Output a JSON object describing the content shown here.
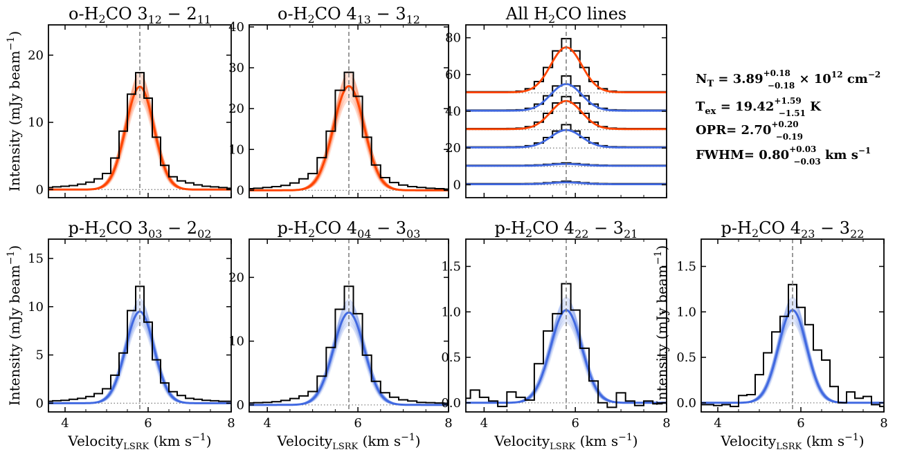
{
  "shared": {
    "ylabel": "Intensity (mJy beam",
    "ylabel_sup": "−1",
    "ylabel_close": ")",
    "xlabel": "Velocity",
    "xlabel_sub": "LSRK",
    "xlabel_units": " (km s",
    "xlabel_sup": "−1",
    "xlabel_close": ")",
    "v_sys": 5.8,
    "colors": {
      "ortho": "#ff4500",
      "para": "#4169e1",
      "data": "#000000",
      "marker": "#808080"
    }
  },
  "annotation": {
    "nt_label": "N",
    "nt_sub": "T",
    "nt_value": " = 3.89",
    "nt_up": "+0.18",
    "nt_down": "−0.18",
    "nt_tail": " × 10",
    "nt_exp": "12",
    "nt_units": " cm",
    "nt_units_exp": "−2",
    "tex_label": "T",
    "tex_sub": "ex",
    "tex_value": " = 19.42",
    "tex_up": "+1.59",
    "tex_down": "−1.51",
    "tex_units": " K",
    "opr_label": "OPR= 2.70",
    "opr_up": "+0.20",
    "opr_down": "−0.19",
    "fwhm_label": "FWHM= 0.80",
    "fwhm_up": "+0.03",
    "fwhm_down": "−0.03",
    "fwhm_units": " km s",
    "fwhm_units_exp": "−1"
  },
  "chart_data": [
    {
      "type": "line",
      "panel": "o-3_12",
      "color": "ortho",
      "title_parts": [
        "o-H",
        "2",
        "CO 3",
        "12",
        " − 2",
        "11"
      ],
      "xlim": [
        3.6,
        8.0
      ],
      "ylim": [
        -1.2,
        24.5
      ],
      "xticks": [
        4,
        6,
        8
      ],
      "yticks": [
        0,
        10,
        20
      ],
      "ytick_labels": [
        "0",
        "10",
        "20"
      ],
      "show_xticklabels": false,
      "show_ylabel": true,
      "show_xlabel": false,
      "model": {
        "peak": 15.3,
        "base": 0.0,
        "fwhm": 0.8
      },
      "spectrum": {
        "x0": 3.5,
        "dx": 0.2,
        "y": [
          0.3,
          0.4,
          0.5,
          0.6,
          0.8,
          1.1,
          1.6,
          2.4,
          4.7,
          8.7,
          14.2,
          17.4,
          13.6,
          7.8,
          3.6,
          1.9,
          1.3,
          1.0,
          0.7,
          0.5,
          0.4,
          0.3,
          0.2,
          0.2
        ]
      }
    },
    {
      "type": "line",
      "panel": "o-4_13",
      "color": "ortho",
      "title_parts": [
        "o-H",
        "2",
        "CO 4",
        "13",
        " − 3",
        "12"
      ],
      "xlim": [
        3.6,
        8.0
      ],
      "ylim": [
        -1.8,
        40.5
      ],
      "xticks": [
        4,
        6,
        8
      ],
      "yticks": [
        0,
        10,
        20,
        30,
        40
      ],
      "ytick_labels": [
        "0",
        "10",
        "20",
        "30",
        "40"
      ],
      "show_xticklabels": false,
      "show_ylabel": false,
      "show_xlabel": false,
      "model": {
        "peak": 25.5,
        "base": 0.0,
        "fwhm": 0.8
      },
      "spectrum": {
        "x0": 3.5,
        "dx": 0.2,
        "y": [
          0.4,
          0.5,
          0.7,
          0.9,
          1.2,
          1.8,
          2.8,
          4.1,
          8.0,
          14.5,
          24.5,
          28.9,
          23.0,
          13.0,
          6.2,
          3.1,
          1.9,
          1.3,
          0.9,
          0.7,
          0.5,
          0.4,
          0.3,
          0.3
        ]
      }
    },
    {
      "type": "line",
      "panel": "all",
      "color": "mixed",
      "title_parts": [
        "All H",
        "2",
        "CO lines"
      ],
      "xlim": [
        3.6,
        8.0
      ],
      "ylim": [
        -7.0,
        87.0
      ],
      "xticks": [
        4,
        6,
        8
      ],
      "yticks": [
        0,
        20,
        40,
        60,
        80
      ],
      "ytick_labels": [
        "0",
        "20",
        "40",
        "60",
        "80"
      ],
      "show_xticklabels": false,
      "show_ylabel": false,
      "show_xlabel": false,
      "offsets": [
        50,
        40,
        30,
        20,
        10,
        0
      ],
      "series_colors": [
        "ortho",
        "para",
        "ortho",
        "para",
        "para",
        "para"
      ],
      "peaks": [
        24.5,
        14.5,
        15.3,
        9.5,
        1.0,
        1.0
      ],
      "data_peaks": [
        28.9,
        18.6,
        17.4,
        12.1,
        1.3,
        1.3
      ]
    },
    {
      "type": "line",
      "panel": "p-3_03",
      "color": "para",
      "title_parts": [
        "p-H",
        "2",
        "CO 3",
        "03",
        " − 2",
        "02"
      ],
      "xlim": [
        3.6,
        8.0
      ],
      "ylim": [
        -0.9,
        17.0
      ],
      "xticks": [
        4,
        6,
        8
      ],
      "yticks": [
        0,
        5,
        10,
        15
      ],
      "ytick_labels": [
        "0",
        "5",
        "10",
        "15"
      ],
      "show_xticklabels": true,
      "show_ylabel": true,
      "show_xlabel": true,
      "model": {
        "peak": 9.5,
        "base": 0.0,
        "fwhm": 0.8
      },
      "spectrum": {
        "x0": 3.5,
        "dx": 0.2,
        "y": [
          0.2,
          0.25,
          0.3,
          0.4,
          0.5,
          0.7,
          1.0,
          1.5,
          2.9,
          5.2,
          9.6,
          12.1,
          8.4,
          4.5,
          2.1,
          1.2,
          0.8,
          0.5,
          0.4,
          0.3,
          0.25,
          0.2,
          0.2,
          0.1
        ]
      }
    },
    {
      "type": "line",
      "panel": "p-4_04",
      "color": "para",
      "title_parts": [
        "p-H",
        "2",
        "CO 4",
        "04",
        " − 3",
        "03"
      ],
      "xlim": [
        3.6,
        8.0
      ],
      "ylim": [
        -1.1,
        26.0
      ],
      "xticks": [
        4,
        6,
        8
      ],
      "yticks": [
        0,
        10,
        20
      ],
      "ytick_labels": [
        "0",
        "10",
        "20"
      ],
      "show_xticklabels": true,
      "show_ylabel": false,
      "show_xlabel": true,
      "model": {
        "peak": 14.5,
        "base": 0.0,
        "fwhm": 0.8
      },
      "spectrum": {
        "x0": 3.5,
        "dx": 0.2,
        "y": [
          0.3,
          0.35,
          0.4,
          0.5,
          0.7,
          1.0,
          1.4,
          2.1,
          4.5,
          9.0,
          15.0,
          18.6,
          14.3,
          7.8,
          3.7,
          1.9,
          1.2,
          0.8,
          0.6,
          0.4,
          0.35,
          0.3,
          0.25,
          0.2
        ]
      }
    },
    {
      "type": "line",
      "panel": "p-4_22",
      "color": "para",
      "title_parts": [
        "p-H",
        "2",
        "CO 4",
        "22",
        " − 3",
        "21"
      ],
      "xlim": [
        3.6,
        8.0
      ],
      "ylim": [
        -0.1,
        1.8
      ],
      "xticks": [
        4,
        6,
        8
      ],
      "yticks": [
        0,
        0.5,
        1.0,
        1.5
      ],
      "ytick_labels": [
        "0.0",
        "0.5",
        "1.0",
        "1.5"
      ],
      "show_xticklabels": true,
      "show_ylabel": false,
      "show_xlabel": true,
      "model": {
        "peak": 1.02,
        "base": 0.0,
        "fwhm": 0.8
      },
      "spectrum": {
        "x0": 3.5,
        "dx": 0.2,
        "y": [
          0.05,
          0.14,
          0.06,
          0.02,
          -0.04,
          0.12,
          0.06,
          0.03,
          0.43,
          0.79,
          0.98,
          1.31,
          1.02,
          0.6,
          0.24,
          0.0,
          -0.05,
          0.11,
          0.02,
          -0.03,
          0.02,
          -0.01,
          0.0,
          0.0
        ]
      }
    },
    {
      "type": "line",
      "panel": "p-4_23",
      "color": "para",
      "title_parts": [
        "p-H",
        "2",
        "CO 4",
        "23",
        " − 3",
        "22"
      ],
      "xlim": [
        3.6,
        8.0
      ],
      "ylim": [
        -0.1,
        1.8
      ],
      "xticks": [
        4,
        6,
        8
      ],
      "yticks": [
        0,
        0.5,
        1.0,
        1.5
      ],
      "ytick_labels": [
        "0.0",
        "0.5",
        "1.0",
        "1.5"
      ],
      "show_xticklabels": true,
      "show_ylabel": true,
      "show_xlabel": true,
      "model": {
        "peak": 1.02,
        "base": 0.0,
        "fwhm": 0.8
      },
      "spectrum": {
        "x0": 3.5,
        "dx": 0.2,
        "y": [
          -0.02,
          -0.02,
          -0.03,
          -0.02,
          -0.04,
          0.08,
          0.09,
          0.31,
          0.55,
          0.78,
          0.95,
          1.3,
          1.05,
          0.86,
          0.58,
          0.47,
          0.18,
          0.0,
          0.12,
          0.05,
          0.07,
          -0.02,
          -0.04,
          -0.05
        ]
      }
    }
  ]
}
